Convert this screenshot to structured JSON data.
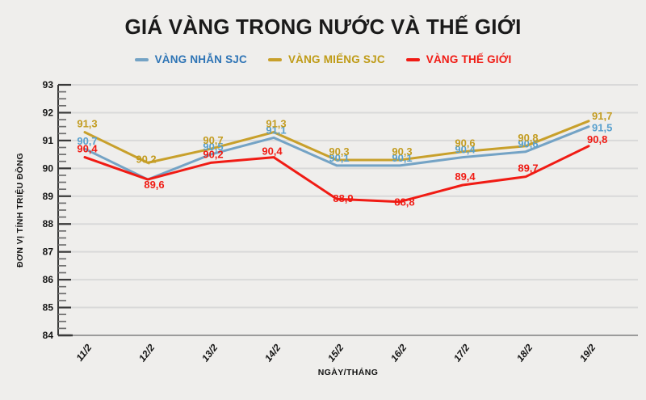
{
  "page": {
    "background": "#efeeec"
  },
  "header": {
    "title": "GIÁ VÀNG TRONG NƯỚC VÀ THẾ GIỚI"
  },
  "legend": [
    {
      "label": "VÀNG NHẪN SJC",
      "marker_color": "#74a3c5",
      "text_color": "#2e74b5"
    },
    {
      "label": "VÀNG MIẾNG SJC",
      "marker_color": "#c8a02b",
      "text_color": "#bf9b16"
    },
    {
      "label": "VÀNG THẾ GIỚI",
      "marker_color": "#f01b14",
      "text_color": "#f01b14"
    }
  ],
  "chart_data": {
    "type": "line",
    "title": "GIÁ VÀNG TRONG NƯỚC VÀ THẾ GIỚI",
    "categories": [
      "11/2",
      "12/2",
      "13/2",
      "14/2",
      "15/2",
      "16/2",
      "17/2",
      "18/2",
      "19/2"
    ],
    "series": [
      {
        "name": "VÀNG NHẪN SJC",
        "color": "#74a3c5",
        "label_color": "#58a0ce",
        "values": [
          90.7,
          89.6,
          90.5,
          91.1,
          90.1,
          90.1,
          90.4,
          90.6,
          91.5
        ],
        "labels": [
          "90,7",
          null,
          "90,5",
          "91,1",
          "90,1",
          "90,1",
          "90,4",
          "90,6",
          "91,5"
        ]
      },
      {
        "name": "VÀNG MIẾNG SJC",
        "color": "#c8a02b",
        "label_color": "#c39c20",
        "values": [
          91.3,
          90.2,
          90.7,
          91.3,
          90.3,
          90.3,
          90.6,
          90.8,
          91.7
        ],
        "labels": [
          "91,3",
          "90,2",
          "90,7",
          "91,3",
          "90,3",
          "90,3",
          "90,6",
          "90,8",
          "91,7"
        ]
      },
      {
        "name": "VÀNG THẾ GIỚI",
        "color": "#f01b14",
        "label_color": "#f01b14",
        "values": [
          90.4,
          89.6,
          90.2,
          90.4,
          88.9,
          88.8,
          89.4,
          89.7,
          90.8
        ],
        "labels": [
          "90,4",
          "89,6",
          "90,2",
          "90,4",
          "88,9",
          "88,8",
          "89,4",
          "89,7",
          "90,8"
        ]
      }
    ],
    "xlabel": "NGÀY/THÁNG",
    "ylabel": "ĐƠN VỊ TÍNH TRIỆU ĐỒNG",
    "ylim": [
      84,
      93
    ],
    "ytick_step": 1,
    "yminor_step": 0.25,
    "grid": "horizontal",
    "legend_position": "top",
    "colors": {
      "gridline": "#d9d9d9",
      "axis": "#3a3a3a",
      "bottom_axis": "#9b9b9b",
      "minor_tick": "#6e6e6e",
      "tick_text": "#141414"
    }
  }
}
